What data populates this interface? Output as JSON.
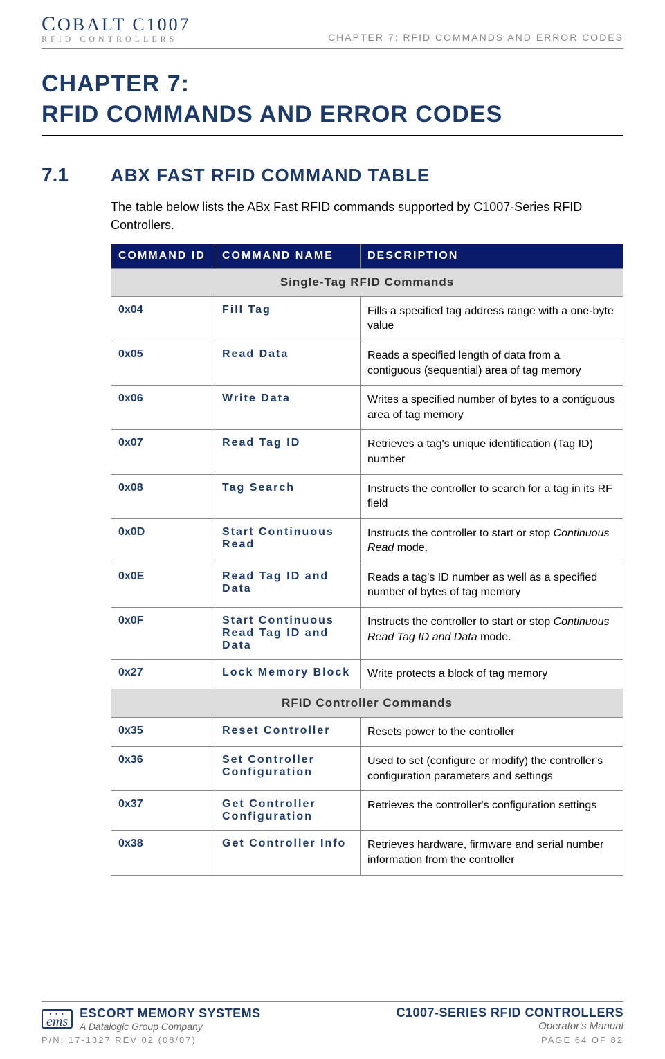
{
  "header": {
    "logo_line1_a": "C",
    "logo_line1_b": "OBALT",
    "logo_line1_c": "  C1007",
    "logo_line2": "RFID CONTROLLERS",
    "chapter_ref": "CHAPTER 7: RFID COMMANDS AND ERROR CODES"
  },
  "chapter_title_line1": "CHAPTER 7:",
  "chapter_title_line2": "RFID COMMANDS AND ERROR CODES",
  "section": {
    "num": "7.1",
    "title": "ABX FAST RFID COMMAND TABLE",
    "intro": "The table below lists the ABx Fast RFID commands supported by C1007-Series RFID Controllers."
  },
  "table": {
    "headers": {
      "id": "COMMAND ID",
      "name": "COMMAND NAME",
      "desc": "DESCRIPTION"
    },
    "group1": "Single-Tag RFID Commands",
    "rows1": [
      {
        "id": "0x04",
        "name": "Fill Tag",
        "desc": "Fills a specified tag address range with a one-byte value"
      },
      {
        "id": "0x05",
        "name": "Read Data",
        "desc": "Reads a specified length of data from a contiguous (sequential) area of tag memory"
      },
      {
        "id": "0x06",
        "name": "Write Data",
        "desc": "Writes a specified number of bytes to a contiguous area of tag memory"
      },
      {
        "id": "0x07",
        "name": "Read Tag ID",
        "desc": "Retrieves a tag's unique identification (Tag ID) number"
      },
      {
        "id": "0x08",
        "name": "Tag Search",
        "desc": "Instructs the controller to search for a tag in its RF field"
      },
      {
        "id": "0x0D",
        "name": "Start Continuous Read",
        "desc_pre": "Instructs the controller to start or stop ",
        "desc_em": "Continuous Read",
        "desc_post": " mode."
      },
      {
        "id": "0x0E",
        "name": "Read Tag ID and Data",
        "desc": "Reads a tag's ID number as well as a specified number of bytes of tag memory"
      },
      {
        "id": "0x0F",
        "name": "Start Continuous Read Tag ID and Data",
        "desc_pre": "Instructs the controller to start or stop ",
        "desc_em": "Continuous Read Tag ID and Data",
        "desc_post": " mode."
      },
      {
        "id": "0x27",
        "name": "Lock Memory Block",
        "desc": "Write protects a block of tag memory"
      }
    ],
    "group2": "RFID Controller Commands",
    "rows2": [
      {
        "id": "0x35",
        "name": "Reset Controller",
        "desc": "Resets power to the controller"
      },
      {
        "id": "0x36",
        "name": "Set Controller Configuration",
        "desc": "Used to set (configure or modify) the controller's configuration parameters and settings"
      },
      {
        "id": "0x37",
        "name": "Get Controller Configuration",
        "desc": "Retrieves the controller's configuration settings"
      },
      {
        "id": "0x38",
        "name": "Get Controller Info",
        "desc": "Retrieves hardware, firmware and serial number information from the controller"
      }
    ]
  },
  "footer": {
    "ems_l1": "ESCORT MEMORY SYSTEMS",
    "ems_l2": "A Datalogic Group Company",
    "right_l1": "C1007-SERIES RFID CONTROLLERS",
    "right_l2": "Operator's Manual",
    "pn": "P/N: 17-1327 REV 02 (08/07)",
    "page": "PAGE 64 OF 82",
    "ems_logo_text": "ems"
  }
}
